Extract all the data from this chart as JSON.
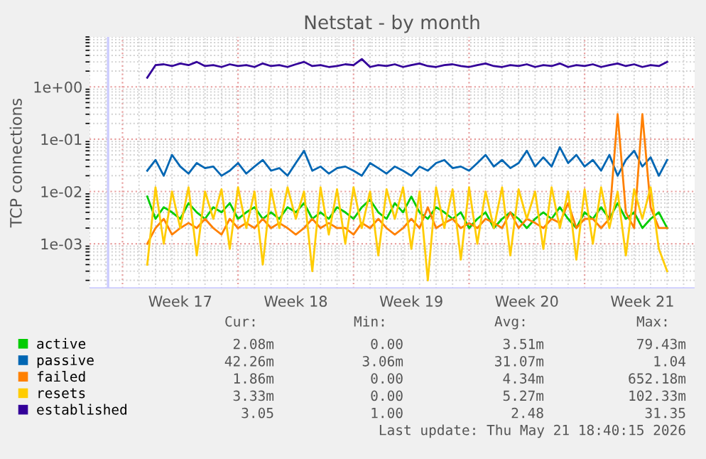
{
  "chart_data": {
    "type": "line",
    "title": "Netstat - by month",
    "ylabel": "TCP connections",
    "x": [
      "2026-04-21T12:00",
      "2026-04-22T00:00",
      "2026-04-22T12:00",
      "2026-04-23T00:00",
      "2026-04-23T12:00",
      "2026-04-24T00:00",
      "2026-04-24T12:00",
      "2026-04-25T00:00",
      "2026-04-25T12:00",
      "2026-04-26T00:00",
      "2026-04-26T12:00",
      "2026-04-27T00:00",
      "2026-04-27T12:00",
      "2026-04-28T00:00",
      "2026-04-28T12:00",
      "2026-04-29T00:00",
      "2026-04-29T12:00",
      "2026-04-30T00:00",
      "2026-04-30T12:00",
      "2026-05-01T00:00",
      "2026-05-01T12:00",
      "2026-05-02T00:00",
      "2026-05-02T12:00",
      "2026-05-03T00:00",
      "2026-05-03T12:00",
      "2026-05-04T00:00",
      "2026-05-04T12:00",
      "2026-05-05T00:00",
      "2026-05-05T12:00",
      "2026-05-06T00:00",
      "2026-05-06T12:00",
      "2026-05-07T00:00",
      "2026-05-07T12:00",
      "2026-05-08T00:00",
      "2026-05-08T12:00",
      "2026-05-09T00:00",
      "2026-05-09T12:00",
      "2026-05-10T00:00",
      "2026-05-10T12:00",
      "2026-05-11T00:00",
      "2026-05-11T12:00",
      "2026-05-12T00:00",
      "2026-05-12T12:00",
      "2026-05-13T00:00",
      "2026-05-13T12:00",
      "2026-05-14T00:00",
      "2026-05-14T12:00",
      "2026-05-15T00:00",
      "2026-05-15T12:00",
      "2026-05-16T00:00",
      "2026-05-16T12:00",
      "2026-05-17T00:00",
      "2026-05-17T12:00",
      "2026-05-18T00:00",
      "2026-05-18T12:00",
      "2026-05-19T00:00",
      "2026-05-19T12:00",
      "2026-05-20T00:00",
      "2026-05-20T12:00",
      "2026-05-21T00:00",
      "2026-05-21T12:00",
      "2026-05-22T00:00",
      "2026-05-22T12:00",
      "2026-05-23T00:00"
    ],
    "series": [
      {
        "name": "active",
        "color": "#00cc00",
        "values": [
          0.008,
          0.003,
          0.005,
          0.004,
          0.003,
          0.006,
          0.004,
          0.003,
          0.005,
          0.004,
          0.006,
          0.003,
          0.004,
          0.005,
          0.003,
          0.004,
          0.003,
          0.005,
          0.004,
          0.006,
          0.003,
          0.004,
          0.003,
          0.005,
          0.004,
          0.003,
          0.005,
          0.007,
          0.004,
          0.003,
          0.006,
          0.004,
          0.008,
          0.004,
          0.003,
          0.005,
          0.004,
          0.003,
          0.004,
          0.002,
          0.003,
          0.004,
          0.002,
          0.003,
          0.004,
          0.003,
          0.002,
          0.003,
          0.004,
          0.003,
          0.005,
          0.003,
          0.002,
          0.004,
          0.003,
          0.005,
          0.003,
          0.006,
          0.003,
          0.004,
          0.002,
          0.003,
          0.004,
          0.002
        ]
      },
      {
        "name": "passive",
        "color": "#0066b3",
        "values": [
          0.025,
          0.04,
          0.02,
          0.05,
          0.03,
          0.022,
          0.035,
          0.028,
          0.03,
          0.02,
          0.025,
          0.035,
          0.022,
          0.03,
          0.04,
          0.025,
          0.028,
          0.02,
          0.035,
          0.06,
          0.025,
          0.03,
          0.022,
          0.028,
          0.03,
          0.025,
          0.02,
          0.035,
          0.028,
          0.022,
          0.03,
          0.025,
          0.02,
          0.03,
          0.025,
          0.035,
          0.04,
          0.028,
          0.03,
          0.025,
          0.035,
          0.05,
          0.03,
          0.04,
          0.028,
          0.035,
          0.06,
          0.03,
          0.045,
          0.03,
          0.07,
          0.035,
          0.05,
          0.03,
          0.04,
          0.025,
          0.05,
          0.02,
          0.04,
          0.06,
          0.03,
          0.045,
          0.02,
          0.04
        ]
      },
      {
        "name": "failed",
        "color": "#ff8000",
        "values": [
          0.001,
          0.002,
          0.003,
          0.0015,
          0.002,
          0.0025,
          0.002,
          0.003,
          0.002,
          0.0015,
          0.003,
          0.002,
          0.0025,
          0.002,
          0.003,
          0.002,
          0.0025,
          0.002,
          0.0015,
          0.002,
          0.003,
          0.002,
          0.0025,
          0.002,
          0.002,
          0.0015,
          0.0025,
          0.002,
          0.003,
          0.002,
          0.0015,
          0.002,
          0.003,
          0.002,
          0.005,
          0.002,
          0.0025,
          0.003,
          0.002,
          0.0025,
          0.002,
          0.003,
          0.0025,
          0.002,
          0.004,
          0.002,
          0.003,
          0.0025,
          0.002,
          0.003,
          0.0025,
          0.006,
          0.002,
          0.003,
          0.003,
          0.002,
          0.003,
          0.3,
          0.004,
          0.002,
          0.3,
          0.005,
          0.002,
          0.002
        ]
      },
      {
        "name": "resets",
        "color": "#ffcc00",
        "values": [
          0.0004,
          0.012,
          0.001,
          0.01,
          0.002,
          0.012,
          0.0006,
          0.01,
          0.003,
          0.011,
          0.0008,
          0.012,
          0.002,
          0.01,
          0.0004,
          0.011,
          0.002,
          0.012,
          0.003,
          0.01,
          0.0003,
          0.012,
          0.0015,
          0.011,
          0.001,
          0.012,
          0.002,
          0.01,
          0.0006,
          0.011,
          0.003,
          0.012,
          0.0008,
          0.01,
          0.0002,
          0.012,
          0.002,
          0.011,
          0.0005,
          0.012,
          0.001,
          0.01,
          0.002,
          0.012,
          0.0006,
          0.011,
          0.003,
          0.01,
          0.0008,
          0.012,
          0.002,
          0.01,
          0.0005,
          0.011,
          0.001,
          0.012,
          0.002,
          0.01,
          0.0006,
          0.011,
          0.003,
          0.012,
          0.0008,
          0.0003
        ]
      },
      {
        "name": "established",
        "color": "#330099",
        "values": [
          1.5,
          2.6,
          2.7,
          2.5,
          2.8,
          2.6,
          3.0,
          2.5,
          2.6,
          2.4,
          2.7,
          2.5,
          2.6,
          2.4,
          2.8,
          2.5,
          2.6,
          2.4,
          2.7,
          3.0,
          2.5,
          2.6,
          2.4,
          2.5,
          2.7,
          2.6,
          3.4,
          2.4,
          2.6,
          2.5,
          2.7,
          2.4,
          2.6,
          2.8,
          2.5,
          2.4,
          2.6,
          2.7,
          2.5,
          2.4,
          2.6,
          2.8,
          2.5,
          2.4,
          2.6,
          2.5,
          2.7,
          2.4,
          2.6,
          2.5,
          2.8,
          2.4,
          2.6,
          2.5,
          2.7,
          2.4,
          2.6,
          2.8,
          2.5,
          2.7,
          2.4,
          2.6,
          2.5,
          3.0
        ]
      }
    ],
    "log": "y",
    "ylim": [
      0.00014,
      9
    ],
    "yticks": [
      {
        "value": 0.001,
        "label": "1e-03"
      },
      {
        "value": 0.01,
        "label": "1e-02"
      },
      {
        "value": 0.1,
        "label": "1e-01"
      },
      {
        "value": 1,
        "label": "1e+00"
      }
    ],
    "xlim": [
      "2026-04-19T03:00",
      "2026-05-24T16:00"
    ],
    "xticks": [
      {
        "value": "2026-04-20",
        "label": null
      },
      {
        "value": "2026-04-23T12:00",
        "label": "Week 17"
      },
      {
        "value": "2026-04-27",
        "label": null
      },
      {
        "value": "2026-04-30T12:00",
        "label": "Week 18"
      },
      {
        "value": "2026-05-04",
        "label": null
      },
      {
        "value": "2026-05-07T12:00",
        "label": "Week 19"
      },
      {
        "value": "2026-05-11",
        "label": null
      },
      {
        "value": "2026-05-14T12:00",
        "label": "Week 20"
      },
      {
        "value": "2026-05-18",
        "label": null
      },
      {
        "value": "2026-05-21T12:00",
        "label": "Week 21"
      }
    ],
    "grid": true,
    "legend": "bottom",
    "marker": "none",
    "line_style": "solid",
    "annotations": [
      "Cur:",
      "Min:",
      "Avg:",
      "Max:",
      "2.08m",
      "0.00",
      "3.51m",
      "79.43m",
      "42.26m",
      "3.06m",
      "31.07m",
      "1.04",
      "1.86m",
      "0.00",
      "4.34m",
      "652.18m",
      "3.33m",
      "0.00",
      "5.27m",
      "102.33m",
      "3.05",
      "1.00",
      "2.48",
      "31.35",
      "Last update: Thu May 21 18:40:15 2026"
    ]
  }
}
